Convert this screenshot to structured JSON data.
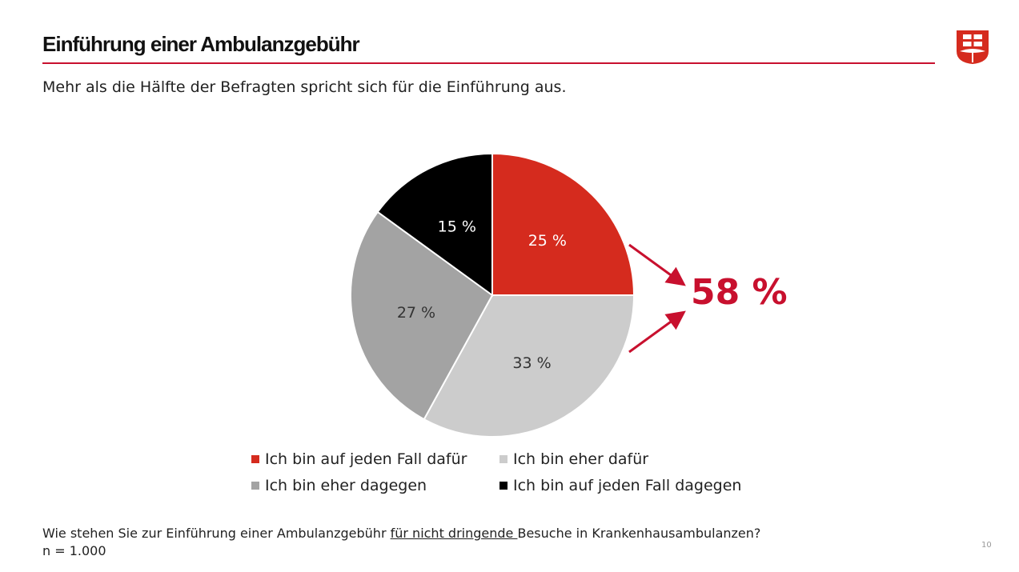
{
  "header": {
    "title": "Einführung einer Ambulanzgebühr",
    "subtitle": "Mehr als die Hälfte der Befragten spricht sich für die Einführung aus."
  },
  "logo": {
    "icon": "shield-logo-icon",
    "color": "#d52b1e"
  },
  "chart_data": {
    "type": "pie",
    "categories": [
      "Ich bin auf jeden Fall dafür",
      "Ich bin eher dafür",
      "Ich bin eher dagegen",
      "Ich bin auf jeden Fall dagegen"
    ],
    "values": [
      25,
      33,
      27,
      15
    ],
    "labels": [
      "25 %",
      "33 %",
      "27 %",
      "15 %"
    ],
    "colors": [
      "#d52b1e",
      "#cccccc",
      "#a3a3a3",
      "#000000"
    ],
    "label_colors": [
      "#ffffff",
      "#333333",
      "#333333",
      "#ffffff"
    ],
    "start": "12 o'clock, clockwise",
    "legend_position": "bottom",
    "annotation": "58 %"
  },
  "footer": {
    "question_before": "Wie stehen Sie zur Einführung einer Ambulanzgebühr ",
    "question_underlined": "für nicht dringende ",
    "question_after": "Besuche in Krankenhausambulanzen?",
    "sample": "n = 1.000"
  },
  "page_number": "10"
}
